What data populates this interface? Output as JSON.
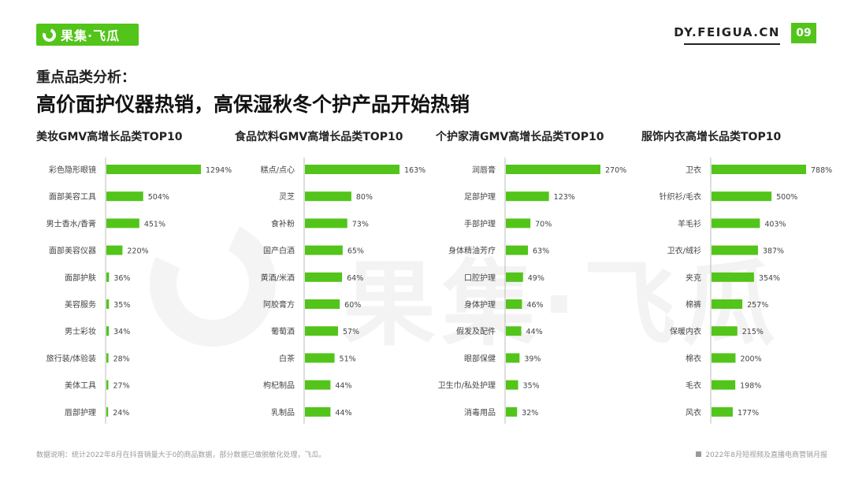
{
  "header": {
    "logo_text": "果集·飞瓜",
    "site_url": "DY.FEIGUA.CN",
    "page_number": "09",
    "accent_color": "#52c41a"
  },
  "watermark_text": "果集·飞瓜",
  "subtitle": "重点品类分析：",
  "title": "高价面护仪器热销，高保湿秋冬个护产品开始热销",
  "chart_data": [
    {
      "type": "bar",
      "orientation": "horizontal",
      "title": "美妆GMV高增长品类TOP10",
      "categories": [
        "彩色隐形眼镜",
        "面部美容工具",
        "男士香水/香膏",
        "面部美容仪器",
        "面部护肤",
        "美容服务",
        "男士彩妆",
        "旅行装/体验装",
        "美体工具",
        "唇部护理"
      ],
      "values": [
        1294,
        504,
        451,
        220,
        36,
        35,
        34,
        28,
        27,
        24
      ],
      "labels": [
        "1294%",
        "504%",
        "451%",
        "220%",
        "36%",
        "35%",
        "34%",
        "28%",
        "27%",
        "24%"
      ],
      "bar_color": "#52c41a"
    },
    {
      "type": "bar",
      "orientation": "horizontal",
      "title": "食品饮料GMV高增长品类TOP10",
      "categories": [
        "糕点/点心",
        "灵芝",
        "食补粉",
        "国产白酒",
        "黄酒/米酒",
        "阿胶膏方",
        "葡萄酒",
        "白茶",
        "枸杞制品",
        "乳制品"
      ],
      "values": [
        163,
        80,
        73,
        65,
        64,
        60,
        57,
        51,
        44,
        44
      ],
      "labels": [
        "163%",
        "80%",
        "73%",
        "65%",
        "64%",
        "60%",
        "57%",
        "51%",
        "44%",
        "44%"
      ],
      "bar_color": "#52c41a"
    },
    {
      "type": "bar",
      "orientation": "horizontal",
      "title": "个护家清GMV高增长品类TOP10",
      "categories": [
        "润唇膏",
        "足部护理",
        "手部护理",
        "身体精油芳疗",
        "口腔护理",
        "身体护理",
        "假发及配件",
        "眼部保健",
        "卫生巾/私处护理",
        "消毒用品"
      ],
      "values": [
        270,
        123,
        70,
        63,
        49,
        46,
        44,
        39,
        35,
        32
      ],
      "labels": [
        "270%",
        "123%",
        "70%",
        "63%",
        "49%",
        "46%",
        "44%",
        "39%",
        "35%",
        "32%"
      ],
      "bar_color": "#52c41a"
    },
    {
      "type": "bar",
      "orientation": "horizontal",
      "title": "服饰内衣高增长品类TOP10",
      "categories": [
        "卫衣",
        "针织衫/毛衣",
        "羊毛衫",
        "卫衣/绒衫",
        "夹克",
        "棉裤",
        "保暖内衣",
        "棉衣",
        "毛衣",
        "风衣"
      ],
      "values": [
        788,
        500,
        403,
        387,
        354,
        257,
        215,
        200,
        198,
        177
      ],
      "labels": [
        "788%",
        "500%",
        "403%",
        "387%",
        "354%",
        "257%",
        "215%",
        "200%",
        "198%",
        "177%"
      ],
      "bar_color": "#52c41a"
    }
  ],
  "footer": {
    "note": "数据说明：统计2022年8月在抖音销量大于0的商品数据，部分数据已做脱敏化处理，飞瓜。",
    "report_name": "2022年8月短视频及直播电商营销月报"
  }
}
